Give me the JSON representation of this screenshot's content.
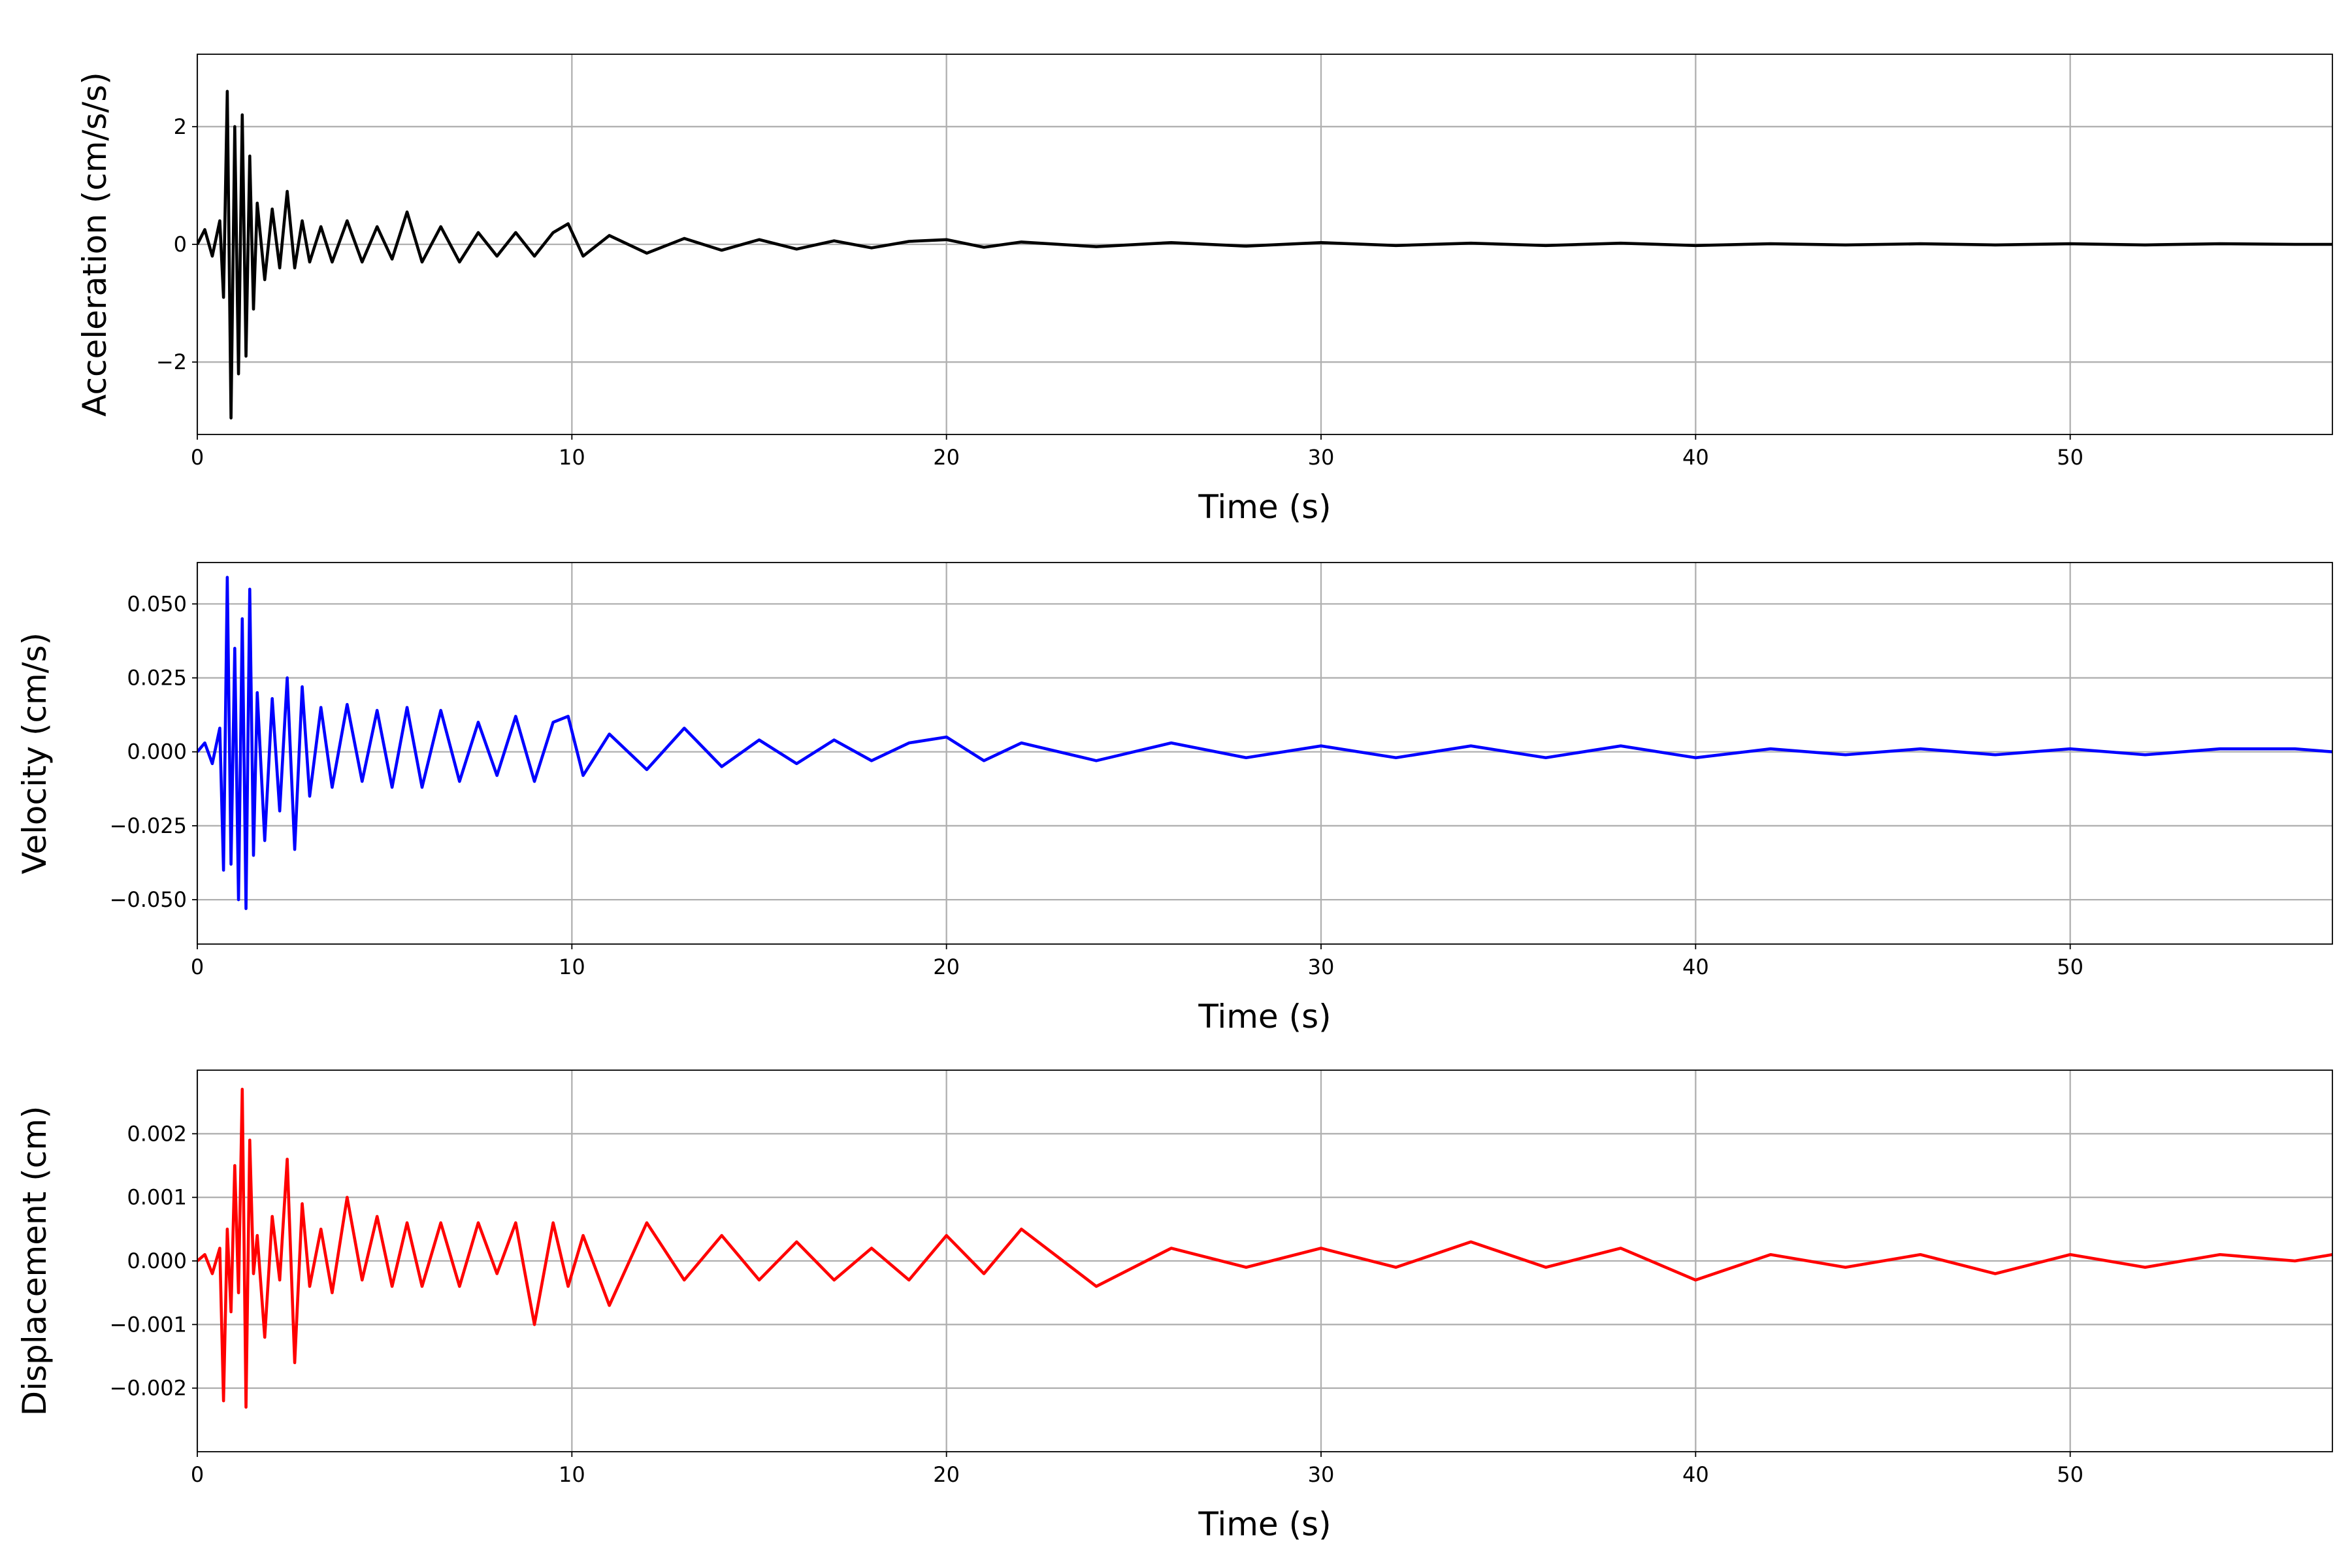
{
  "chart_data": [
    {
      "type": "line",
      "xlabel": "Time (s)",
      "ylabel": "Acceleration (cm/s/s)",
      "color": "#000000",
      "grid": true,
      "xlim": [
        0,
        57
      ],
      "xticks": [
        0,
        10,
        20,
        30,
        40,
        50
      ],
      "ylim": [
        -3.23,
        3.23
      ],
      "yticks": [
        {
          "value": -2,
          "label": "−2"
        },
        0,
        2
      ],
      "x": [
        0,
        0.2,
        0.4,
        0.6,
        0.7,
        0.8,
        0.9,
        1.0,
        1.1,
        1.2,
        1.3,
        1.4,
        1.5,
        1.6,
        1.8,
        2.0,
        2.2,
        2.4,
        2.6,
        2.8,
        3.0,
        3.3,
        3.6,
        4.0,
        4.4,
        4.8,
        5.2,
        5.6,
        6.0,
        6.5,
        7.0,
        7.5,
        8.0,
        8.5,
        9.0,
        9.5,
        9.9,
        10.3,
        11,
        12,
        13,
        14,
        15,
        16,
        17,
        18,
        19,
        20,
        21,
        22,
        24,
        26,
        28,
        30,
        32,
        34,
        36,
        38,
        40,
        42,
        44,
        46,
        48,
        50,
        52,
        54,
        56,
        57
      ],
      "values": [
        0,
        0.25,
        -0.2,
        0.4,
        -0.9,
        2.6,
        -2.95,
        2.0,
        -2.2,
        2.2,
        -1.9,
        1.5,
        -1.1,
        0.7,
        -0.6,
        0.6,
        -0.4,
        0.9,
        -0.4,
        0.4,
        -0.3,
        0.3,
        -0.3,
        0.4,
        -0.3,
        0.3,
        -0.25,
        0.55,
        -0.3,
        0.3,
        -0.3,
        0.2,
        -0.2,
        0.2,
        -0.2,
        0.2,
        0.35,
        -0.2,
        0.15,
        -0.15,
        0.1,
        -0.1,
        0.08,
        -0.08,
        0.06,
        -0.06,
        0.05,
        0.08,
        -0.05,
        0.04,
        -0.04,
        0.03,
        -0.03,
        0.03,
        -0.02,
        0.02,
        -0.02,
        0.02,
        -0.02,
        0.01,
        -0.01,
        0.01,
        -0.01,
        0.01,
        -0.01,
        0.01,
        0,
        0
      ]
    },
    {
      "type": "line",
      "xlabel": "Time (s)",
      "ylabel": "Velocity (cm/s)",
      "color": "#0000ff",
      "grid": true,
      "xlim": [
        0,
        57
      ],
      "xticks": [
        0,
        10,
        20,
        30,
        40,
        50
      ],
      "ylim": [
        -0.065,
        0.064
      ],
      "yticks": [
        {
          "value": -0.05,
          "label": "−0.050"
        },
        {
          "value": -0.025,
          "label": "−0.025"
        },
        {
          "value": 0,
          "label": "0.000"
        },
        0.025,
        {
          "value": 0.05,
          "label": "0.050"
        }
      ],
      "x": [
        0,
        0.2,
        0.4,
        0.6,
        0.7,
        0.8,
        0.9,
        1.0,
        1.1,
        1.2,
        1.3,
        1.4,
        1.5,
        1.6,
        1.8,
        2.0,
        2.2,
        2.4,
        2.6,
        2.8,
        3.0,
        3.3,
        3.6,
        4.0,
        4.4,
        4.8,
        5.2,
        5.6,
        6.0,
        6.5,
        7.0,
        7.5,
        8.0,
        8.5,
        9.0,
        9.5,
        9.9,
        10.3,
        11,
        12,
        13,
        14,
        15,
        16,
        17,
        18,
        19,
        20,
        21,
        22,
        24,
        26,
        28,
        30,
        32,
        34,
        36,
        38,
        40,
        42,
        44,
        46,
        48,
        50,
        52,
        54,
        56,
        57
      ],
      "values": [
        0,
        0.003,
        -0.004,
        0.008,
        -0.04,
        0.059,
        -0.038,
        0.035,
        -0.05,
        0.045,
        -0.053,
        0.055,
        -0.035,
        0.02,
        -0.03,
        0.018,
        -0.02,
        0.025,
        -0.033,
        0.022,
        -0.015,
        0.015,
        -0.012,
        0.016,
        -0.01,
        0.014,
        -0.012,
        0.015,
        -0.012,
        0.014,
        -0.01,
        0.01,
        -0.008,
        0.012,
        -0.01,
        0.01,
        0.012,
        -0.008,
        0.006,
        -0.006,
        0.008,
        -0.005,
        0.004,
        -0.004,
        0.004,
        -0.003,
        0.003,
        0.005,
        -0.003,
        0.003,
        -0.003,
        0.003,
        -0.002,
        0.002,
        -0.002,
        0.002,
        -0.002,
        0.002,
        -0.002,
        0.001,
        -0.001,
        0.001,
        -0.001,
        0.001,
        -0.001,
        0.001,
        0.001,
        0
      ]
    },
    {
      "type": "line",
      "xlabel": "Time (s)",
      "ylabel": "Displacement (cm)",
      "color": "#ff0000",
      "grid": true,
      "xlim": [
        0,
        57
      ],
      "xticks": [
        0,
        10,
        20,
        30,
        40,
        50
      ],
      "ylim": [
        -0.003,
        0.003
      ],
      "yticks": [
        {
          "value": -0.002,
          "label": "−0.002"
        },
        {
          "value": -0.001,
          "label": "−0.001"
        },
        {
          "value": 0,
          "label": "0.000"
        },
        0.001,
        0.002
      ],
      "x": [
        0,
        0.2,
        0.4,
        0.6,
        0.7,
        0.8,
        0.9,
        1.0,
        1.1,
        1.2,
        1.3,
        1.4,
        1.5,
        1.6,
        1.8,
        2.0,
        2.2,
        2.4,
        2.6,
        2.8,
        3.0,
        3.3,
        3.6,
        4.0,
        4.4,
        4.8,
        5.2,
        5.6,
        6.0,
        6.5,
        7.0,
        7.5,
        8.0,
        8.5,
        9.0,
        9.5,
        9.9,
        10.3,
        11,
        12,
        13,
        14,
        15,
        16,
        17,
        18,
        19,
        20,
        21,
        22,
        24,
        26,
        28,
        30,
        32,
        34,
        36,
        38,
        40,
        42,
        44,
        46,
        48,
        50,
        52,
        54,
        56,
        57
      ],
      "values": [
        0,
        0.0001,
        -0.0002,
        0.0002,
        -0.0022,
        0.0005,
        -0.0008,
        0.0015,
        -0.0005,
        0.0027,
        -0.0023,
        0.0019,
        -0.0002,
        0.0004,
        -0.0012,
        0.0007,
        -0.0003,
        0.0016,
        -0.0016,
        0.0009,
        -0.0004,
        0.0005,
        -0.0005,
        0.001,
        -0.0003,
        0.0007,
        -0.0004,
        0.0006,
        -0.0004,
        0.0006,
        -0.0004,
        0.0006,
        -0.0002,
        0.0006,
        -0.001,
        0.0006,
        -0.0004,
        0.0004,
        -0.0007,
        0.0006,
        -0.0003,
        0.0004,
        -0.0003,
        0.0003,
        -0.0003,
        0.0002,
        -0.0003,
        0.0004,
        -0.0002,
        0.0005,
        -0.0004,
        0.0002,
        -0.0001,
        0.0002,
        -0.0001,
        0.0003,
        -0.0001,
        0.0002,
        -0.0003,
        0.0001,
        -0.0001,
        0.0001,
        -0.0002,
        0.0001,
        -0.0001,
        0.0001,
        0,
        0.0001
      ]
    }
  ]
}
